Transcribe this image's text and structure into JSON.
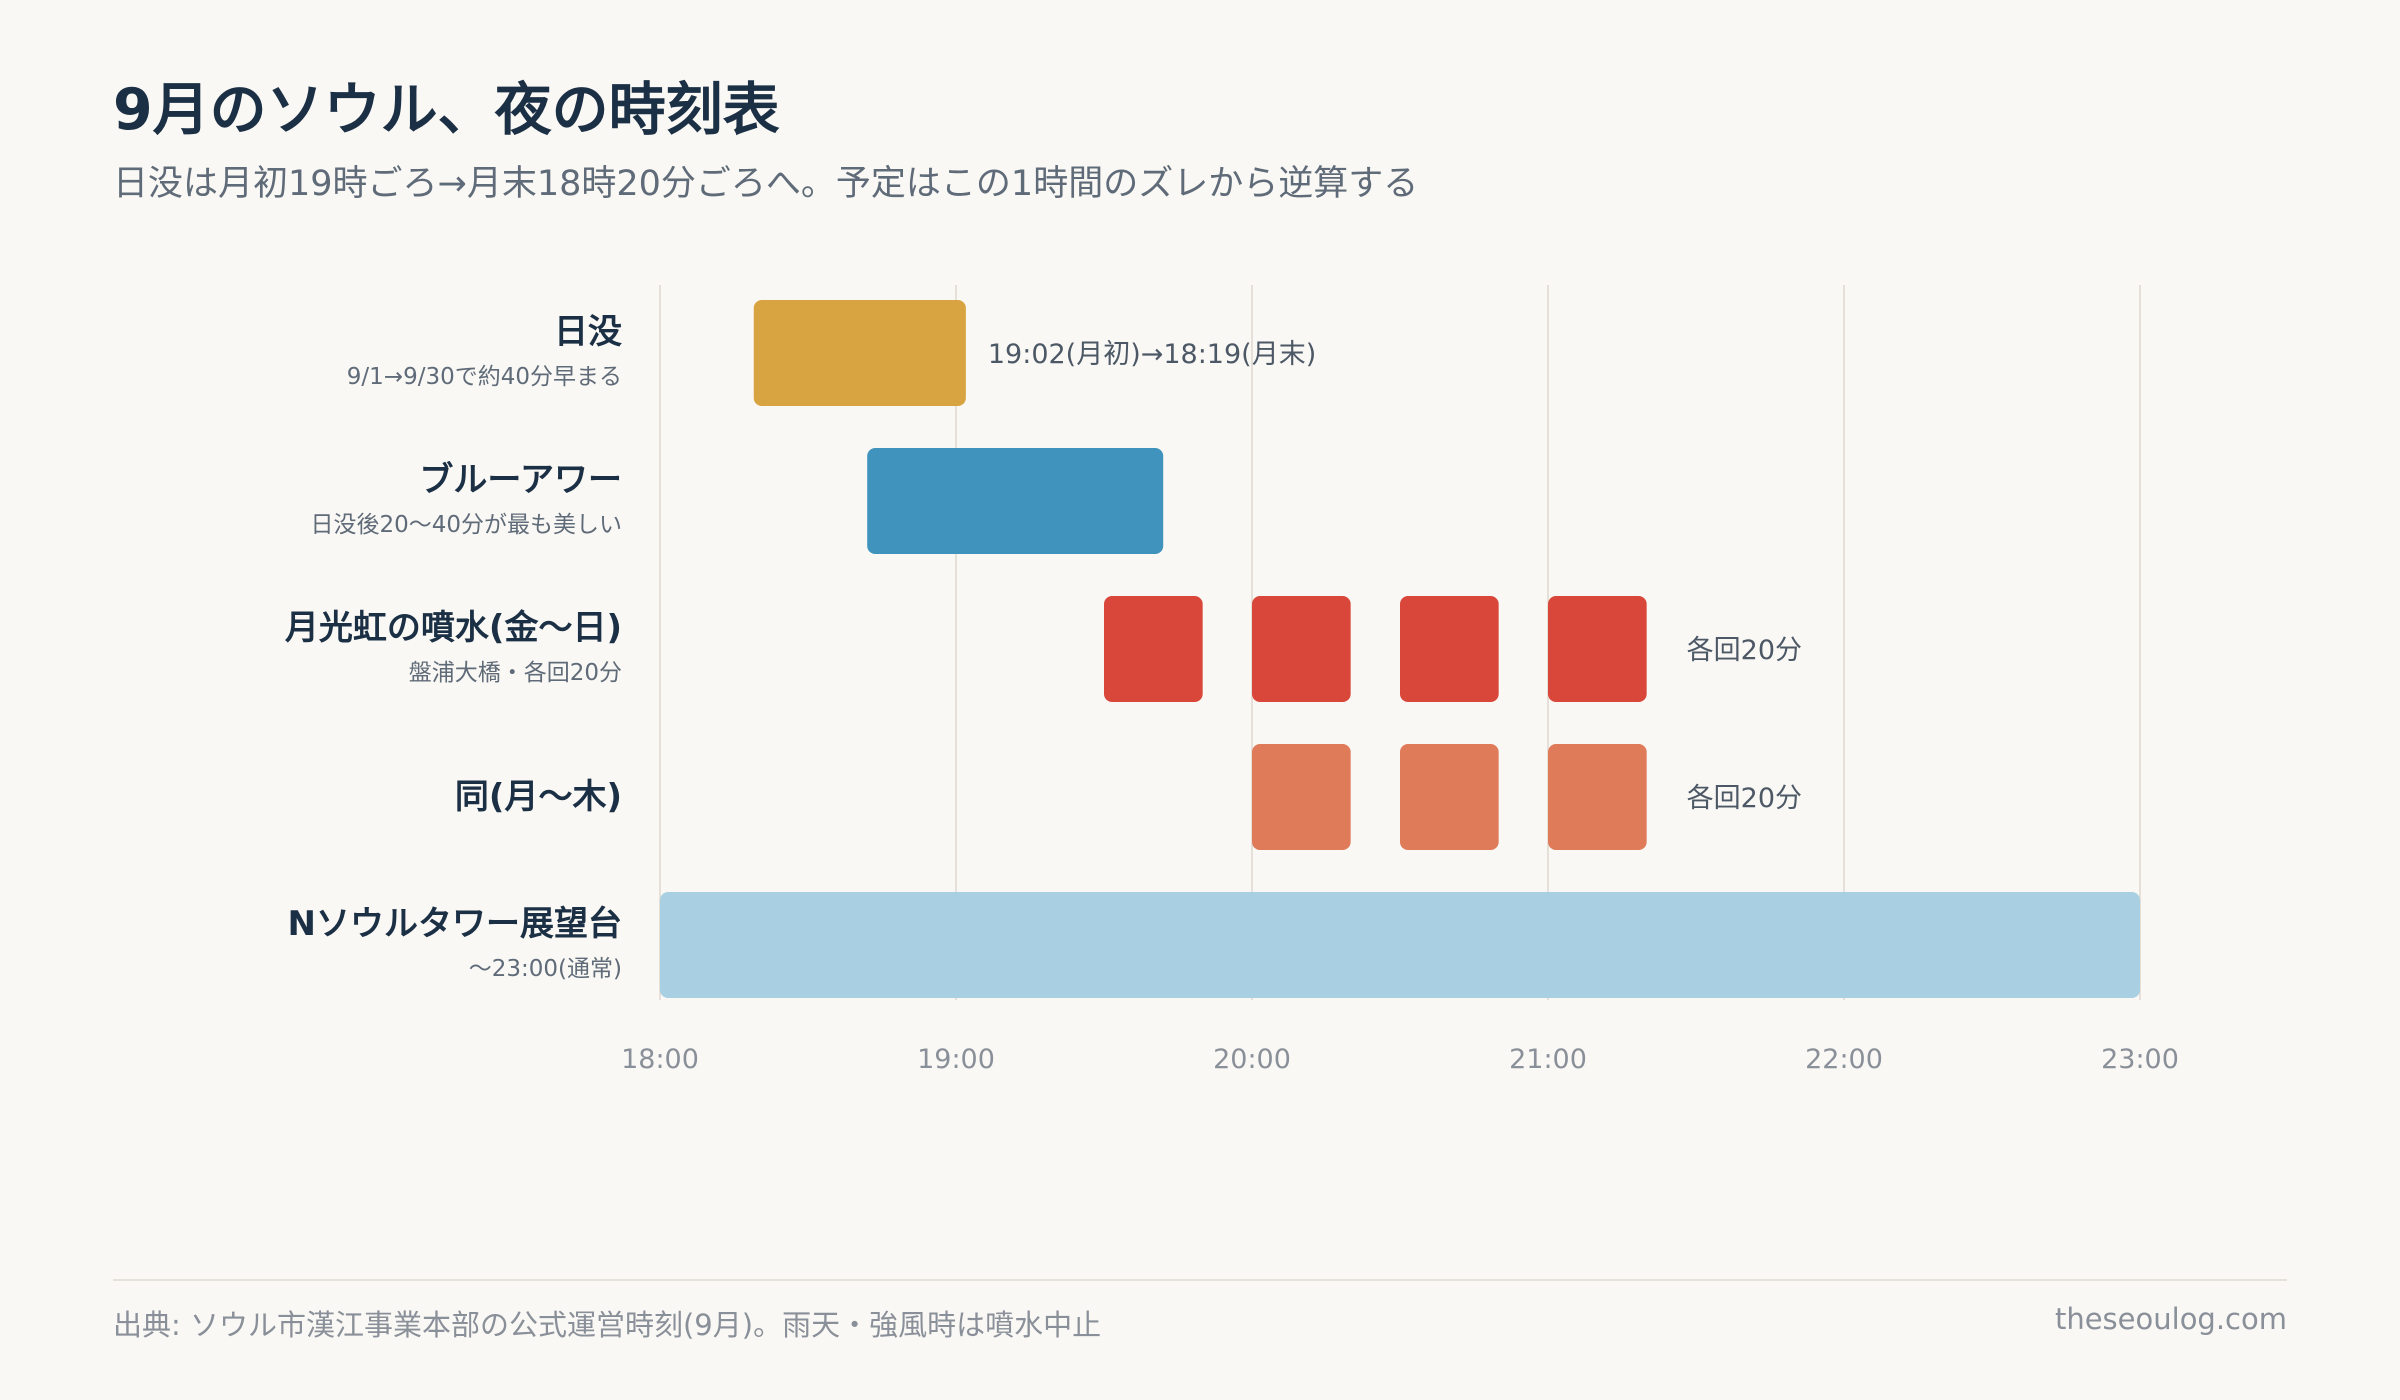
{
  "header": {
    "title": "9月のソウル、夜の時刻表",
    "subtitle": "日没は月初19時ごろ→月末18時20分ごろへ。予定はこの1時間のズレから逆算する"
  },
  "chart_data": {
    "type": "gantt",
    "x_axis": {
      "type": "time",
      "range": [
        "18:00",
        "23:00"
      ],
      "ticks": [
        "18:00",
        "19:00",
        "20:00",
        "21:00",
        "22:00",
        "23:00"
      ],
      "grid": true
    },
    "rows": [
      {
        "label": "日没",
        "sublabel": "9/1→9/30で約40分早まる",
        "color": "#d8a441",
        "bars": [
          {
            "start": "18:19",
            "end": "19:02"
          }
        ],
        "annotation": "19:02(月初)→18:19(月末)"
      },
      {
        "label": "ブルーアワー",
        "sublabel": "日没後20〜40分が最も美しい",
        "color": "#3f93bd",
        "bars": [
          {
            "start": "18:42",
            "end": "19:42"
          }
        ],
        "annotation": ""
      },
      {
        "label": "月光虹の噴水(金〜日)",
        "sublabel": "盤浦大橋・各回20分",
        "color": "#d9473a",
        "bars": [
          {
            "start": "19:30",
            "end": "19:50"
          },
          {
            "start": "20:00",
            "end": "20:20"
          },
          {
            "start": "20:30",
            "end": "20:50"
          },
          {
            "start": "21:00",
            "end": "21:20"
          }
        ],
        "annotation": "各回20分"
      },
      {
        "label": "同(月〜木)",
        "sublabel": "",
        "color": "#e07b59",
        "bars": [
          {
            "start": "20:00",
            "end": "20:20"
          },
          {
            "start": "20:30",
            "end": "20:50"
          },
          {
            "start": "21:00",
            "end": "21:20"
          }
        ],
        "annotation": "各回20分"
      },
      {
        "label": "Nソウルタワー展望台",
        "sublabel": "〜23:00(通常)",
        "color": "#a9cfe2",
        "bars": [
          {
            "start": "18:00",
            "end": "23:00"
          }
        ],
        "annotation": ""
      }
    ]
  },
  "footer": {
    "source": "出典: ソウル市漢江事業本部の公式運営時刻(9月)。雨天・強風時は噴水中止",
    "site": "theseoulog.com"
  }
}
